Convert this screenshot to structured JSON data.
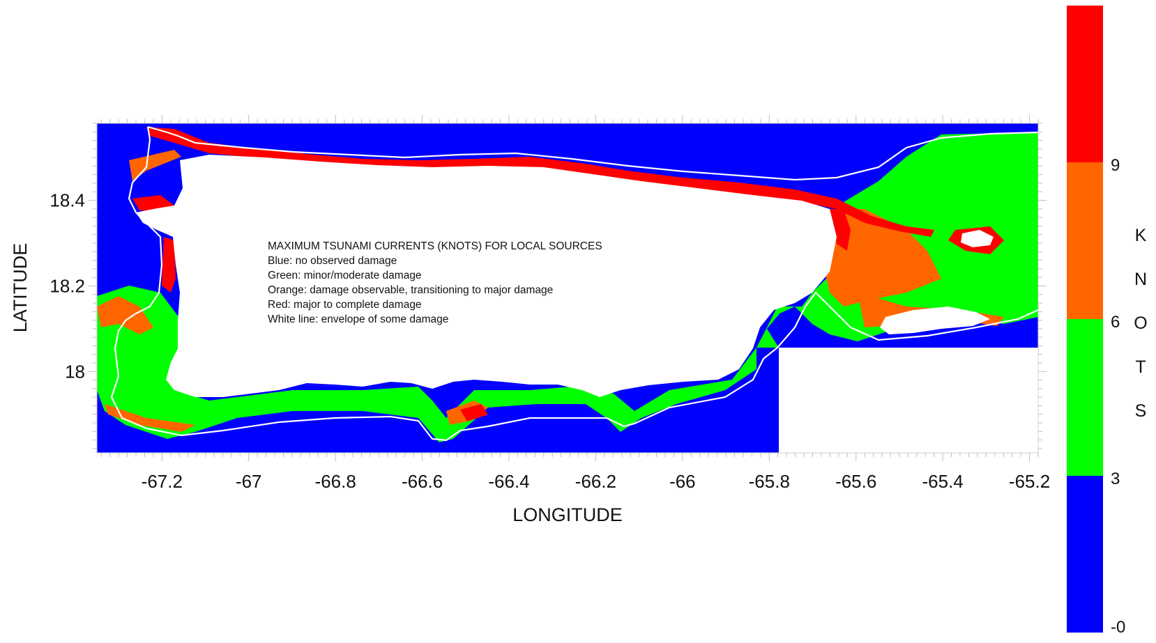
{
  "map": {
    "x_axis": {
      "title": "LONGITUDE",
      "range": [
        -67.35,
        -65.18
      ],
      "ticks": [
        {
          "value": -67.2,
          "label": "-67.2"
        },
        {
          "value": -67.0,
          "label": "-67"
        },
        {
          "value": -66.8,
          "label": "-66.8"
        },
        {
          "value": -66.6,
          "label": "-66.6"
        },
        {
          "value": -66.4,
          "label": "-66.4"
        },
        {
          "value": -66.2,
          "label": "-66.2"
        },
        {
          "value": -66.0,
          "label": "-66"
        },
        {
          "value": -65.8,
          "label": "-65.8"
        },
        {
          "value": -65.6,
          "label": "-65.6"
        },
        {
          "value": -65.4,
          "label": "-65.4"
        },
        {
          "value": -65.2,
          "label": "-65.2"
        }
      ]
    },
    "y_axis": {
      "title": "LATITUDE",
      "range": [
        17.81,
        18.58
      ],
      "ticks": [
        {
          "value": 18.4,
          "label": "18.4"
        },
        {
          "value": 18.2,
          "label": "18.2"
        },
        {
          "value": 18.0,
          "label": "18"
        }
      ]
    },
    "legend_lines": [
      "MAXIMUM TSUNAMI CURRENTS (KNOTS) FOR LOCAL SOURCES",
      "Blue: no observed damage",
      "Green: minor/moderate damage",
      "Orange: damage observable, transitioning to major damage",
      "Red: major to complete damage",
      "White line: envelope of some damage"
    ]
  },
  "colorbar": {
    "title_letters": [
      "K",
      "N",
      "O",
      "T",
      "S"
    ],
    "bands": [
      {
        "from": 0,
        "to": 3,
        "color": "#0000ff"
      },
      {
        "from": 3,
        "to": 6,
        "color": "#00ff00"
      },
      {
        "from": 6,
        "to": 9,
        "color": "#ff6600"
      },
      {
        "from": 9,
        "to": 12,
        "color": "#ff0000"
      }
    ],
    "labels": [
      {
        "value": 0,
        "text": "-0"
      },
      {
        "value": 3,
        "text": "3"
      },
      {
        "value": 6,
        "text": "6"
      },
      {
        "value": 9,
        "text": "9"
      }
    ]
  },
  "colors": {
    "deep_water": "#0000ff",
    "minor_damage": "#00ff00",
    "transition_damage": "#ff6600",
    "major_damage": "#ff0000",
    "land": "#ffffff",
    "envelope_line": "#ffffff"
  }
}
